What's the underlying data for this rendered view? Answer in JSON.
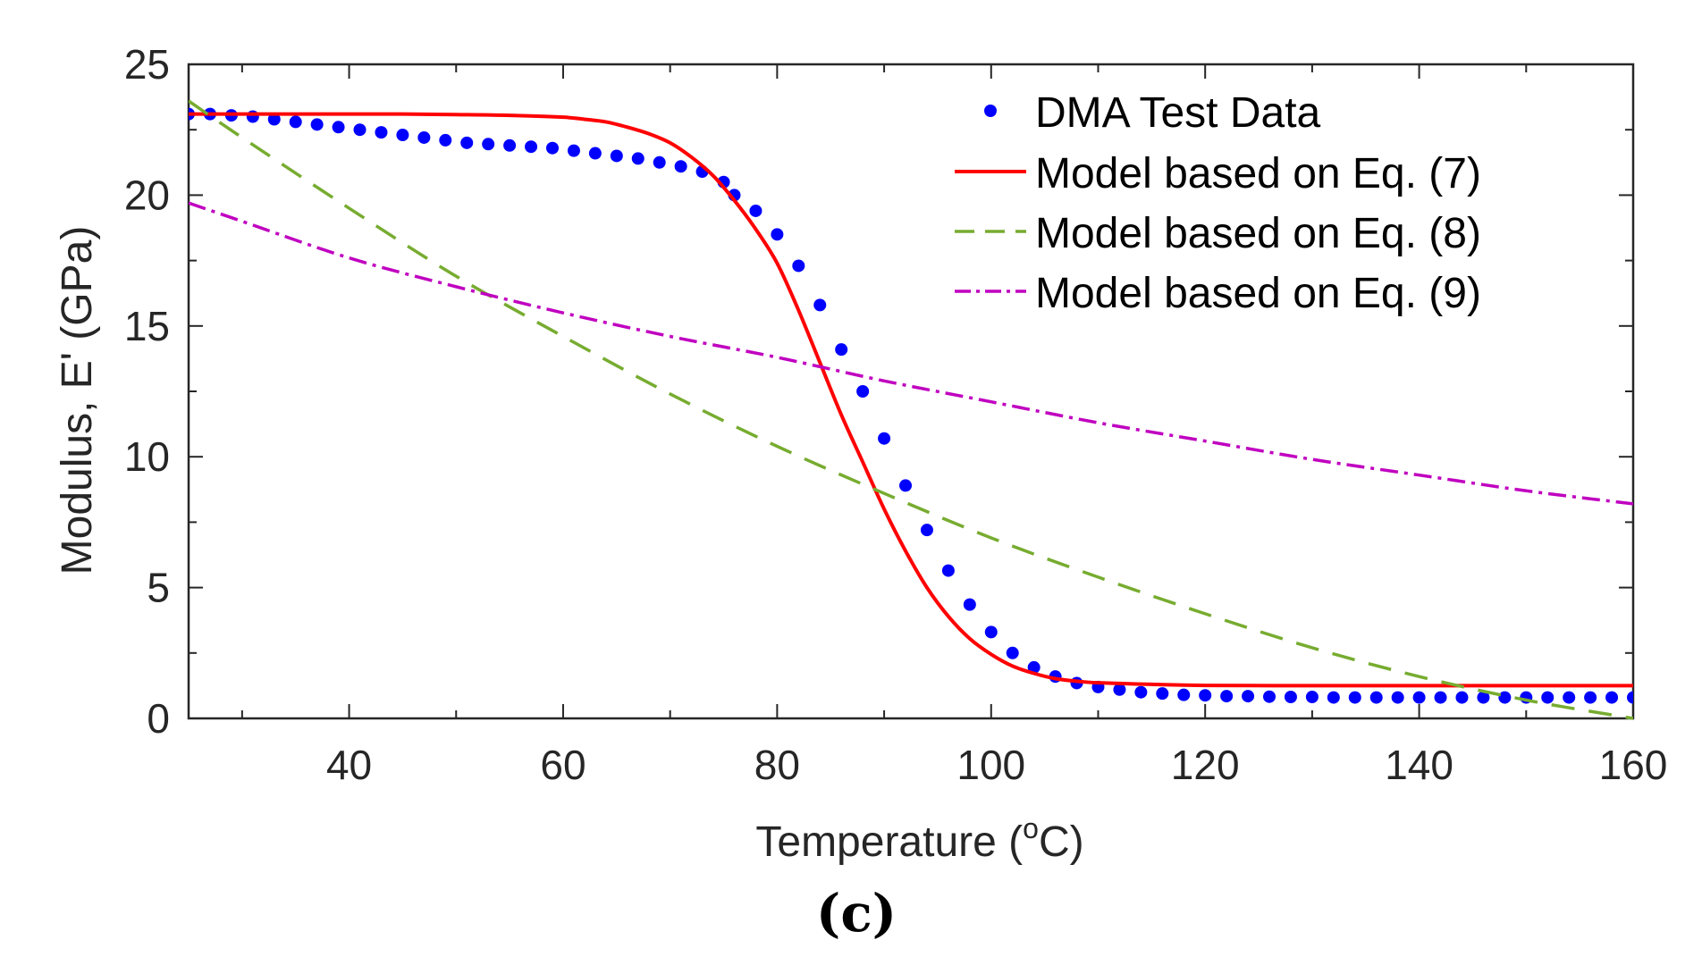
{
  "chart_data": {
    "type": "line",
    "title": "",
    "xlabel": "Temperature (",
    "xlabel_degree": "o",
    "xlabel_unit": "C)",
    "ylabel": "Modulus, E' (GPa)",
    "xlim": [
      25,
      160
    ],
    "ylim": [
      0,
      25
    ],
    "xticks": [
      40,
      60,
      80,
      100,
      120,
      140,
      160
    ],
    "yticks": [
      0,
      5,
      10,
      15,
      20,
      25
    ],
    "legend_position": "top-right",
    "panel_label": "(c)",
    "colors": {
      "dma": "#0000ff",
      "eq7": "#ff0000",
      "eq8": "#77ac30",
      "eq9": "#c000c0",
      "axis": "#262626"
    },
    "series": [
      {
        "name": "DMA Test Data",
        "style": "dots",
        "x": [
          25,
          27,
          29,
          31,
          33,
          35,
          37,
          39,
          41,
          43,
          45,
          47,
          49,
          51,
          53,
          55,
          57,
          59,
          61,
          63,
          65,
          67,
          69,
          71,
          73,
          75,
          76,
          78,
          80,
          82,
          84,
          86,
          88,
          90,
          92,
          94,
          96,
          98,
          100,
          102,
          104,
          106,
          108,
          110,
          112,
          114,
          116,
          118,
          120,
          122,
          124,
          126,
          128,
          130,
          132,
          134,
          136,
          138,
          140,
          142,
          144,
          146,
          148,
          150,
          152,
          154,
          156,
          158,
          160
        ],
        "values": [
          23.1,
          23.1,
          23.05,
          23.0,
          22.9,
          22.8,
          22.7,
          22.6,
          22.5,
          22.4,
          22.3,
          22.2,
          22.1,
          22.0,
          21.95,
          21.9,
          21.85,
          21.8,
          21.7,
          21.6,
          21.5,
          21.4,
          21.25,
          21.1,
          20.9,
          20.5,
          20.0,
          19.4,
          18.5,
          17.3,
          15.8,
          14.1,
          12.5,
          10.7,
          8.9,
          7.2,
          5.65,
          4.35,
          3.3,
          2.5,
          1.95,
          1.6,
          1.35,
          1.2,
          1.1,
          1.0,
          0.95,
          0.9,
          0.88,
          0.85,
          0.85,
          0.83,
          0.82,
          0.82,
          0.8,
          0.8,
          0.8,
          0.8,
          0.8,
          0.8,
          0.8,
          0.8,
          0.8,
          0.8,
          0.8,
          0.8,
          0.8,
          0.8,
          0.8
        ]
      },
      {
        "name": "Model based on Eq. (7)",
        "style": "solid",
        "x": [
          25,
          30,
          35,
          40,
          45,
          50,
          55,
          60,
          62,
          64,
          66,
          68,
          70,
          72,
          74,
          76,
          78,
          80,
          82,
          84,
          86,
          88,
          90,
          92,
          94,
          96,
          98,
          100,
          102,
          104,
          106,
          108,
          110,
          115,
          120,
          130,
          140,
          150,
          160
        ],
        "values": [
          23.1,
          23.1,
          23.1,
          23.1,
          23.1,
          23.08,
          23.05,
          22.98,
          22.9,
          22.8,
          22.6,
          22.35,
          22.0,
          21.45,
          20.75,
          19.8,
          18.7,
          17.4,
          15.6,
          13.6,
          11.6,
          9.8,
          8.0,
          6.4,
          5.0,
          3.9,
          3.05,
          2.45,
          2.0,
          1.72,
          1.52,
          1.42,
          1.36,
          1.3,
          1.26,
          1.25,
          1.25,
          1.25,
          1.25
        ]
      },
      {
        "name": "Model based on Eq. (8)",
        "style": "dashed",
        "x": [
          25,
          30,
          40,
          50,
          60,
          70,
          80,
          90,
          100,
          110,
          120,
          130,
          140,
          150,
          160
        ],
        "values": [
          23.6,
          22.2,
          19.5,
          16.9,
          14.6,
          12.4,
          10.4,
          8.6,
          6.9,
          5.4,
          4.0,
          2.7,
          1.6,
          0.7,
          0.0
        ]
      },
      {
        "name": "Model based on Eq. (9)",
        "style": "dashdot",
        "x": [
          25,
          30,
          40,
          50,
          60,
          70,
          80,
          90,
          100,
          110,
          120,
          130,
          140,
          150,
          160
        ],
        "values": [
          19.7,
          19.0,
          17.6,
          16.5,
          15.5,
          14.6,
          13.8,
          12.9,
          12.1,
          11.3,
          10.6,
          9.9,
          9.3,
          8.7,
          8.2
        ]
      }
    ]
  }
}
